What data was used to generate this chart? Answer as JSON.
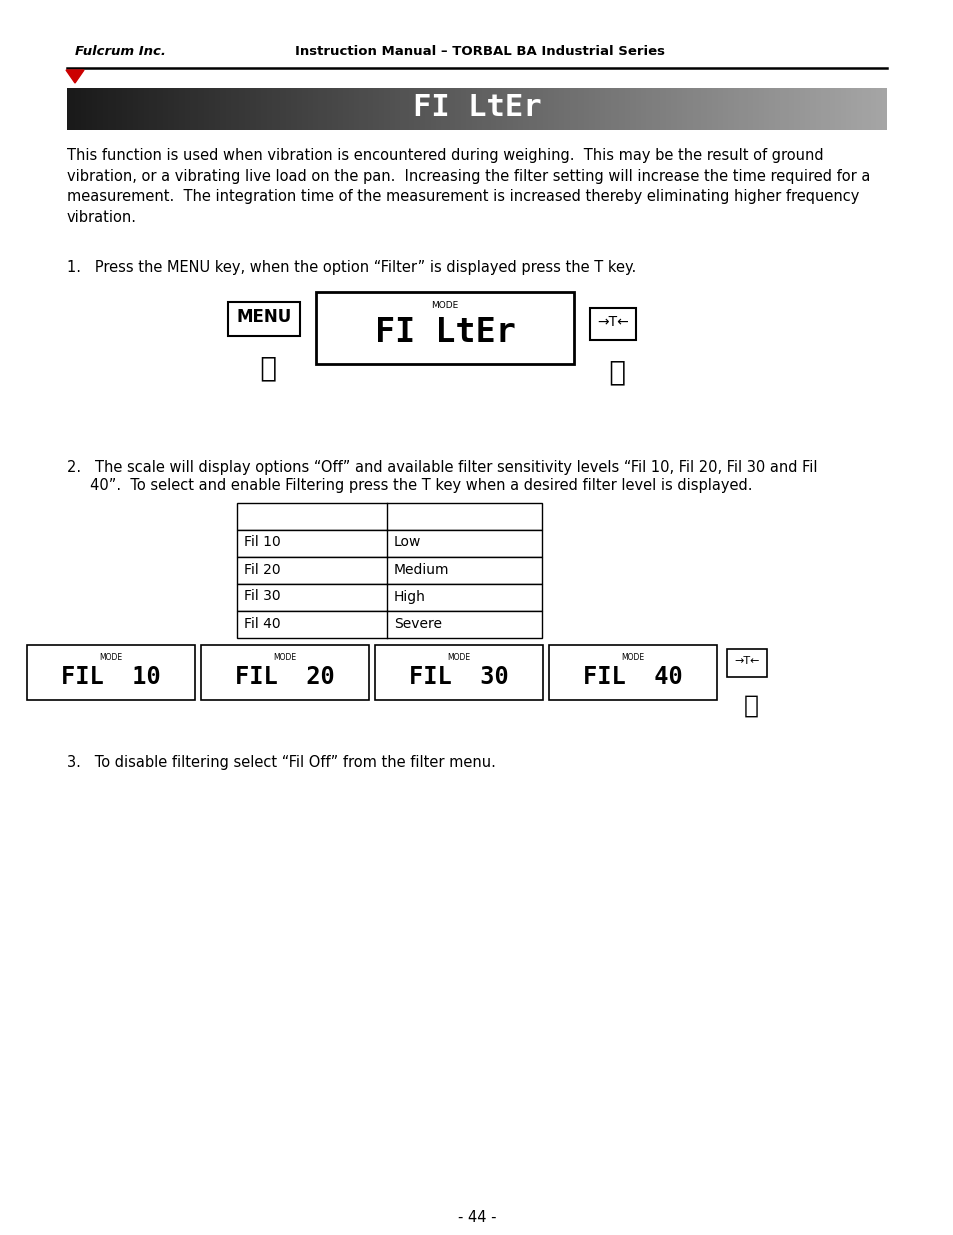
{
  "page_bg": "#ffffff",
  "header_company": "Fulcrum Inc.",
  "header_title": "Instruction Manual – TORBAL BA Industrial Series",
  "banner_text": "FI LtEr",
  "body_text_1": "This function is used when vibration is encountered during weighing.  This may be the result of ground\nvibration, or a vibrating live load on the pan.  Increasing the filter setting will increase the time required for a\nmeasurement.  The integration time of the measurement is increased thereby eliminating higher frequency\nvibration.",
  "step1_text": "1.   Press the MENU key, when the option “Filter” is displayed press the T key.",
  "step2_line1": "2.   The scale will display options “Off” and available filter sensitivity levels “Fil 10, Fil 20, Fil 30 and Fil",
  "step2_line2": "     40”.  To select and enable Filtering press the T key when a desired filter level is displayed.",
  "step3_text": "3.   To disable filtering select “Fil Off” from the filter menu.",
  "table_rows": [
    [
      "",
      ""
    ],
    [
      "Fil 10",
      "Low"
    ],
    [
      "Fil 20",
      "Medium"
    ],
    [
      "Fil 30",
      "High"
    ],
    [
      "Fil 40",
      "Severe"
    ]
  ],
  "display_screens": [
    "FIL  10",
    "FIL  20",
    "FIL  30",
    "FIL  40"
  ],
  "page_number": "- 44 -",
  "font_size_body": 10.5,
  "font_size_header": 9.5,
  "font_size_step": 10.5
}
